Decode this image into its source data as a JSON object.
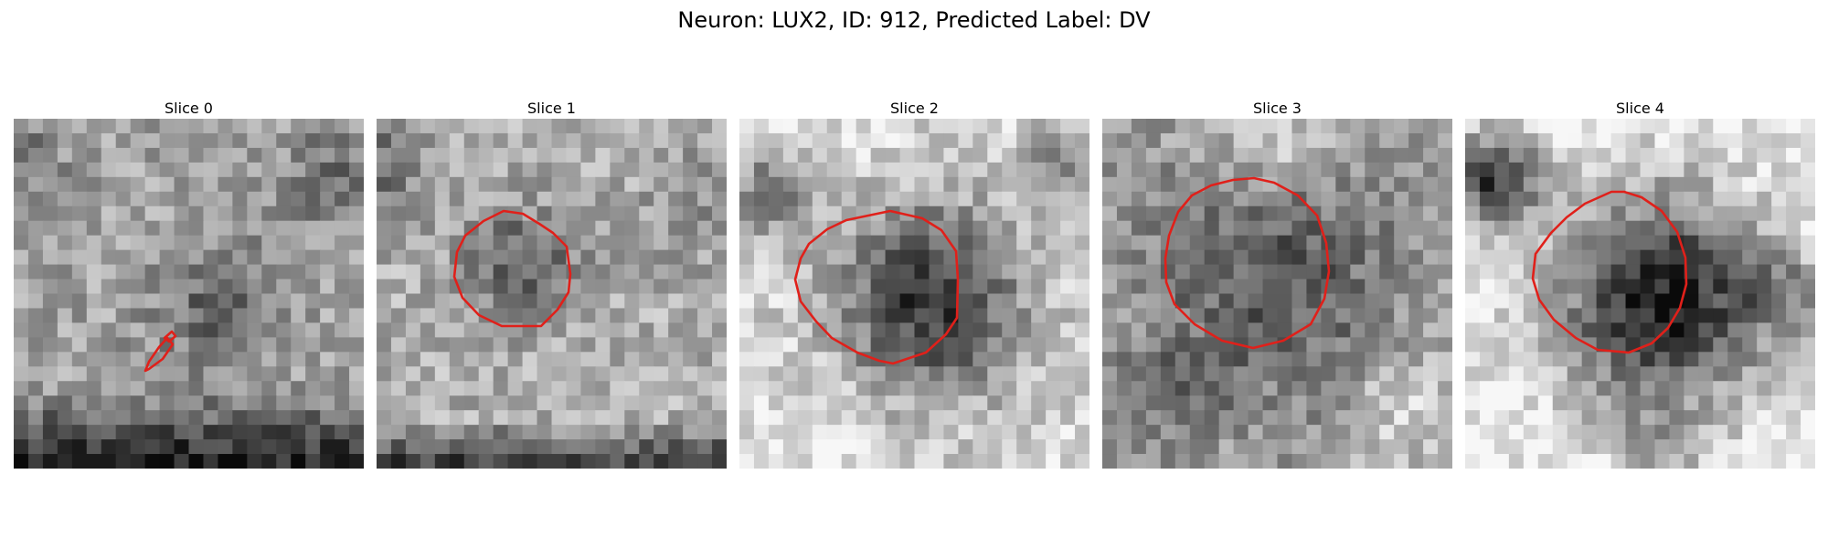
{
  "figure": {
    "suptitle": "Neuron: LUX2, ID: 912, Predicted Label: DV",
    "contour_color": "#e0201a"
  },
  "panels": [
    {
      "title": "Slice 0"
    },
    {
      "title": "Slice 1"
    },
    {
      "title": "Slice 2"
    },
    {
      "title": "Slice 3"
    },
    {
      "title": "Slice 4"
    }
  ]
}
